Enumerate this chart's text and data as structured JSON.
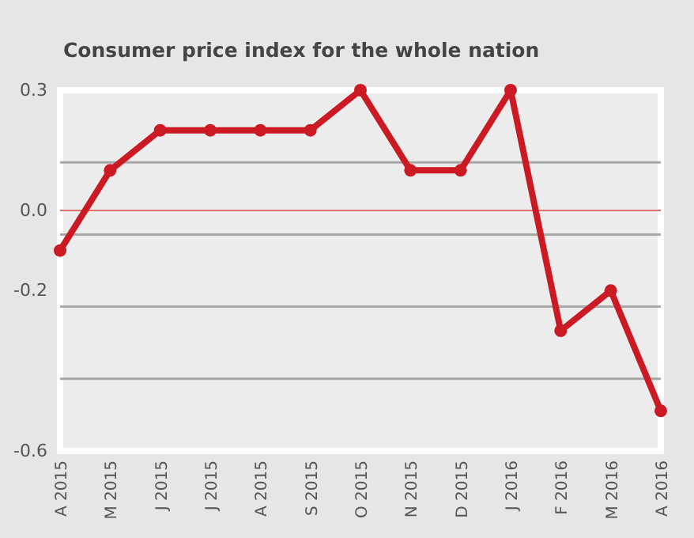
{
  "chart_data": {
    "type": "line",
    "title": "Consumer price index for the whole nation",
    "categories": [
      "A 2015",
      "M 2015",
      "J 2015",
      "J 2015",
      "A 2015",
      "S 2015",
      "O 2015",
      "N 2015",
      "D 2015",
      "J 2016",
      "F 2016",
      "M 2016",
      "A 2016"
    ],
    "series": [
      {
        "color": "#cc1a24",
        "values": [
          -0.1,
          0.1,
          0.2,
          0.2,
          0.2,
          0.2,
          0.3,
          0.1,
          0.1,
          0.3,
          -0.3,
          -0.2,
          -0.5
        ]
      }
    ],
    "ylim": [
      -0.6,
      0.3
    ],
    "yticks": [
      0.3,
      {
        "value": 0.12,
        "label": null
      },
      {
        "value": 0,
        "label": "0.0"
      },
      {
        "value": -0.06,
        "label": null
      },
      {
        "value": -0.2,
        "label": "-0.2"
      },
      {
        "value": -0.24,
        "label": null
      },
      {
        "value": -0.42,
        "label": null
      },
      -0.6
    ],
    "ref_lines": [
      {
        "axis": "y",
        "value": 0,
        "color": "#e07070"
      }
    ],
    "grid": "y",
    "marker": "circle",
    "line_style": "solid"
  }
}
